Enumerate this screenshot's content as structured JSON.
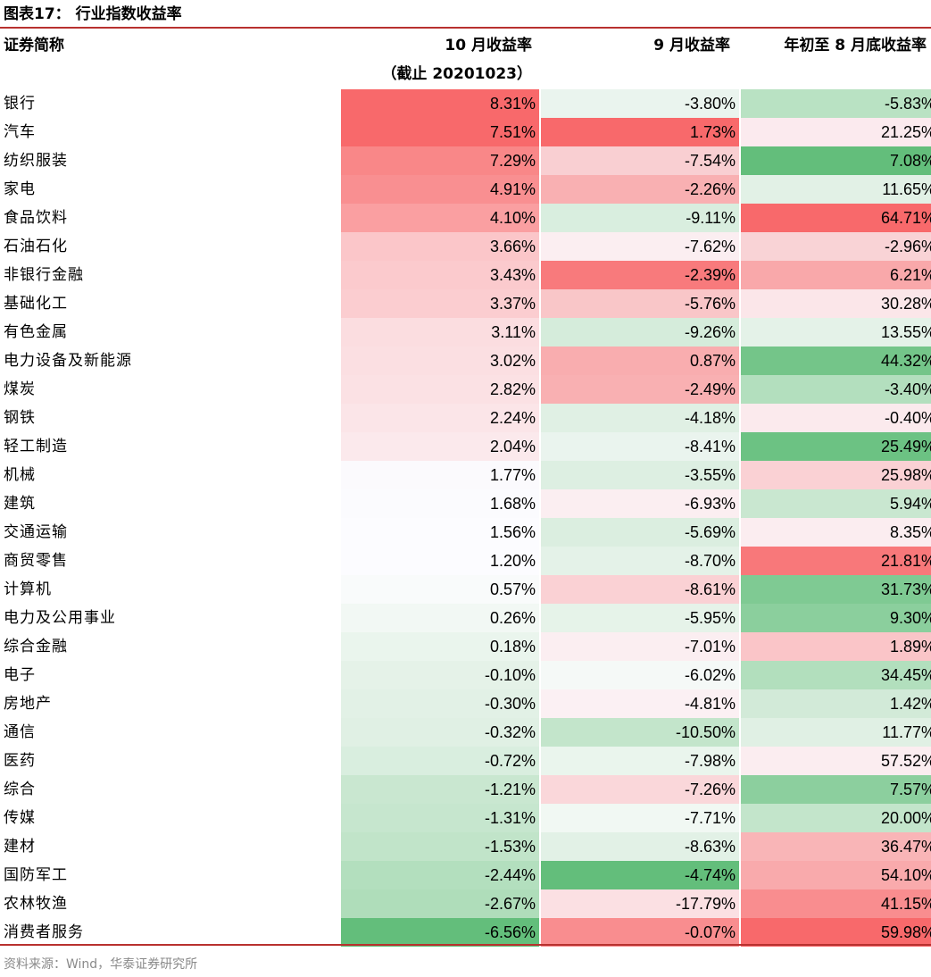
{
  "title": "图表17：  行业指数收益率",
  "headers": {
    "name": "证券简称",
    "oct_line1": "10 月收益率",
    "oct_line2": "（截止 20201023）",
    "sep": "9 月收益率",
    "ytd": "年初至 8 月底收益率"
  },
  "colors": {
    "rule": "#b8312f",
    "positive_max": "#f8696b",
    "negative_max": "#63be7b",
    "neutral": "#fcfcff"
  },
  "rows": [
    {
      "name": "银行",
      "oct": "8.31%",
      "sep": "-3.80%",
      "ytd": "-5.83%",
      "c1": "#f8696b",
      "c2": "#eaf4ee",
      "c3": "#b9e2c3"
    },
    {
      "name": "汽车",
      "oct": "7.51%",
      "sep": "1.73%",
      "ytd": "21.25%",
      "c1": "#f8696b",
      "c2": "#f8696b",
      "c3": "#fbeaee"
    },
    {
      "name": "纺织服装",
      "oct": "7.29%",
      "sep": "-7.54%",
      "ytd": "7.08%",
      "c1": "#f98788",
      "c2": "#f9cfd2",
      "c3": "#63be7b"
    },
    {
      "name": "家电",
      "oct": "4.91%",
      "sep": "-2.26%",
      "ytd": "11.65%",
      "c1": "#f98f91",
      "c2": "#f9b0b2",
      "c3": "#e2f1e6"
    },
    {
      "name": "食品饮料",
      "oct": "4.10%",
      "sep": "-9.11%",
      "ytd": "64.71%",
      "c1": "#fa9fa1",
      "c2": "#d9eedf",
      "c3": "#f8696b"
    },
    {
      "name": "石油石化",
      "oct": "3.66%",
      "sep": "-7.62%",
      "ytd": "-2.96%",
      "c1": "#fbc6c9",
      "c2": "#fbeef1",
      "c3": "#f9d3d6"
    },
    {
      "name": "非银行金融",
      "oct": "3.43%",
      "sep": "-2.39%",
      "ytd": "6.21%",
      "c1": "#fbcacd",
      "c2": "#f87a7c",
      "c3": "#f9a8aa"
    },
    {
      "name": "基础化工",
      "oct": "3.37%",
      "sep": "-5.76%",
      "ytd": "30.28%",
      "c1": "#fbcdd0",
      "c2": "#f9c6c8",
      "c3": "#fbe6e9"
    },
    {
      "name": "有色金属",
      "oct": "3.11%",
      "sep": "-9.26%",
      "ytd": "13.55%",
      "c1": "#fbdde0",
      "c2": "#d5ecdb",
      "c3": "#e4f2e8"
    },
    {
      "name": "电力设备及新能源",
      "oct": "3.02%",
      "sep": "0.87%",
      "ytd": "44.32%",
      "c1": "#fbdfe2",
      "c2": "#f9adaf",
      "c3": "#74c589"
    },
    {
      "name": "煤炭",
      "oct": "2.82%",
      "sep": "-2.49%",
      "ytd": "-3.40%",
      "c1": "#fbe1e4",
      "c2": "#f9b0b2",
      "c3": "#b3dfbe"
    },
    {
      "name": "钢铁",
      "oct": "2.24%",
      "sep": "-4.18%",
      "ytd": "-0.40%",
      "c1": "#fbe5e8",
      "c2": "#e0f0e4",
      "c3": "#fbeaed"
    },
    {
      "name": "轻工制造",
      "oct": "2.04%",
      "sep": "-8.41%",
      "ytd": "25.49%",
      "c1": "#fbe9ec",
      "c2": "#eaf4ee",
      "c3": "#6cc283"
    },
    {
      "name": "机械",
      "oct": "1.77%",
      "sep": "-3.55%",
      "ytd": "25.98%",
      "c1": "#fbfafd",
      "c2": "#ddefe2",
      "c3": "#fad1d4"
    },
    {
      "name": "建筑",
      "oct": "1.68%",
      "sep": "-6.93%",
      "ytd": "5.94%",
      "c1": "#fbfbfe",
      "c2": "#fbeef1",
      "c3": "#c9e7d0"
    },
    {
      "name": "交通运输",
      "oct": "1.56%",
      "sep": "-5.69%",
      "ytd": "8.35%",
      "c1": "#fcfcff",
      "c2": "#dbeee0",
      "c3": "#fbedf0"
    },
    {
      "name": "商贸零售",
      "oct": "1.20%",
      "sep": "-8.70%",
      "ytd": "21.81%",
      "c1": "#fcfcff",
      "c2": "#e4f2e8",
      "c3": "#f8787a"
    },
    {
      "name": "计算机",
      "oct": "0.57%",
      "sep": "-8.61%",
      "ytd": "31.73%",
      "c1": "#f9fbfb",
      "c2": "#fad1d4",
      "c3": "#7fca93"
    },
    {
      "name": "电力及公用事业",
      "oct": "0.26%",
      "sep": "-5.95%",
      "ytd": "9.30%",
      "c1": "#f2f8f4",
      "c2": "#e6f3e9",
      "c3": "#8bcf9d"
    },
    {
      "name": "综合金融",
      "oct": "0.18%",
      "sep": "-7.01%",
      "ytd": "1.89%",
      "c1": "#eaf5ed",
      "c2": "#fbeef1",
      "c3": "#fac5c8"
    },
    {
      "name": "电子",
      "oct": "-0.10%",
      "sep": "-6.02%",
      "ytd": "34.45%",
      "c1": "#e5f2e8",
      "c2": "#f5f9f7",
      "c3": "#b2dfbd"
    },
    {
      "name": "房地产",
      "oct": "-0.30%",
      "sep": "-4.81%",
      "ytd": "1.42%",
      "c1": "#e2f1e6",
      "c2": "#fbf0f3",
      "c3": "#d2ead8"
    },
    {
      "name": "通信",
      "oct": "-0.32%",
      "sep": "-10.50%",
      "ytd": "11.77%",
      "c1": "#e0f0e4",
      "c2": "#c3e5cb",
      "c3": "#e0f0e4"
    },
    {
      "name": "医药",
      "oct": "-0.72%",
      "sep": "-7.98%",
      "ytd": "57.52%",
      "c1": "#d9eedf",
      "c2": "#eaf5ed",
      "c3": "#fbedf0"
    },
    {
      "name": "综合",
      "oct": "-1.21%",
      "sep": "-7.26%",
      "ytd": "7.57%",
      "c1": "#c9e7d0",
      "c2": "#fad7da",
      "c3": "#8ccf9e"
    },
    {
      "name": "传媒",
      "oct": "-1.31%",
      "sep": "-7.71%",
      "ytd": "20.00%",
      "c1": "#c6e6ce",
      "c2": "#f1f8f3",
      "c3": "#c3e5cb"
    },
    {
      "name": "建材",
      "oct": "-1.53%",
      "sep": "-8.63%",
      "ytd": "36.47%",
      "c1": "#c1e4c9",
      "c2": "#e2f1e6",
      "c3": "#f9b5b7"
    },
    {
      "name": "国防军工",
      "oct": "-2.44%",
      "sep": "-4.74%",
      "ytd": "54.10%",
      "c1": "#b3dfbe",
      "c2": "#63be7b",
      "c3": "#f9aaac"
    },
    {
      "name": "农林牧渔",
      "oct": "-2.67%",
      "sep": "-17.79%",
      "ytd": "41.15%",
      "c1": "#afddba",
      "c2": "#fbe0e3",
      "c3": "#f98d8f"
    },
    {
      "name": "消费者服务",
      "oct": "-6.56%",
      "sep": "-0.07%",
      "ytd": "59.98%",
      "c1": "#63be7b",
      "c2": "#f98d8f",
      "c3": "#f8696b"
    }
  ],
  "source": "资料来源：Wind，华泰证券研究所"
}
